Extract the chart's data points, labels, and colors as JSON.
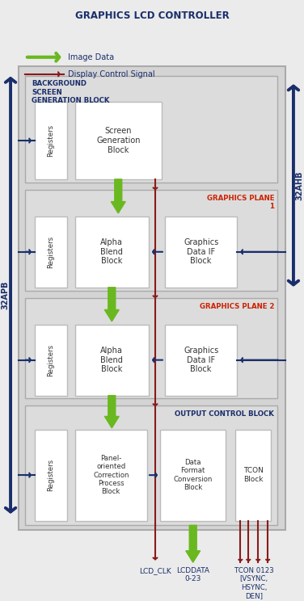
{
  "title": "GRAPHICS LCD CONTROLLER",
  "bg_color": "#d4d4d4",
  "outer_bg": "#ebebeb",
  "block_fill": "#ffffff",
  "dark_blue": "#1a2e6b",
  "blue_arrow": "#1a2e6b",
  "green_arrow": "#6ab820",
  "red_line": "#8b1a1a",
  "label_blue": "#1a2e6b",
  "red_label": "#cc2200",
  "apb_label": "32APB",
  "ahb_label": "32AHB",
  "legend_green": "Image Data",
  "legend_red": "Display Control Signal",
  "sec1_label": "BACKGROUND\nSCREEN\nGENERATION BLOCK",
  "sec2_label": "GRAPHICS PLANE\n1",
  "sec3_label": "GRAPHICS PLANE 2",
  "sec4_label": "OUTPUT CONTROL BLOCK"
}
